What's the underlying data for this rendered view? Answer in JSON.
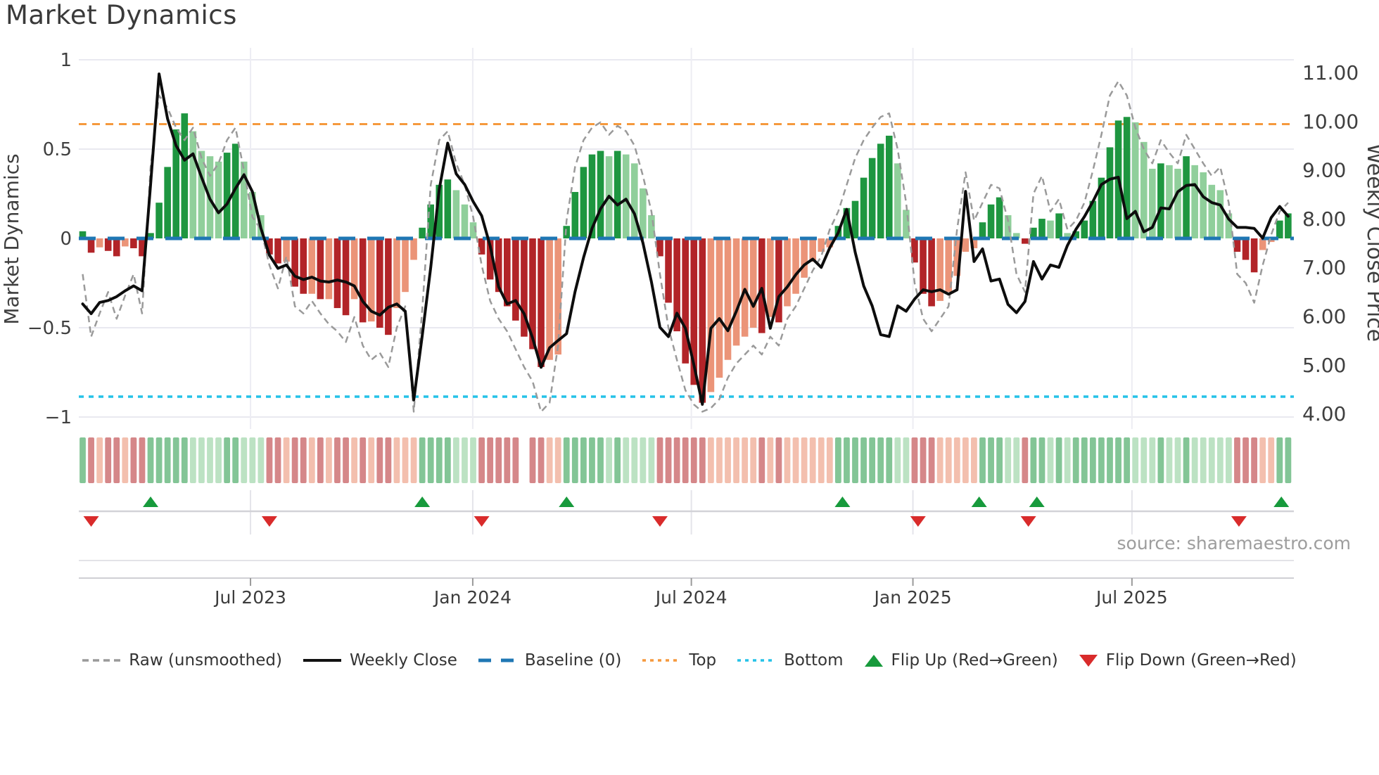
{
  "title": "Market Dynamics",
  "source": {
    "text": "source: sharemaestro.com"
  },
  "axes": {
    "left": {
      "title": "Market Dynamics",
      "tick_labels": [
        "1",
        "0.5",
        "0",
        "−0.5",
        "−1"
      ],
      "tick_values": [
        1,
        0.5,
        0,
        -0.5,
        -1
      ],
      "range": [
        -1.07,
        1.07
      ]
    },
    "right": {
      "title": "Weekly Close Price",
      "tick_labels": [
        "11.00",
        "10.00",
        "9.00",
        "8.00",
        "7.00",
        "6.00",
        "5.00",
        "4.00"
      ],
      "tick_values": [
        11,
        10,
        9,
        8,
        7,
        6,
        5,
        4
      ]
    },
    "x": {
      "tick_labels": [
        "Jul 2023",
        "Jan 2024",
        "Jul 2024",
        "Jan 2025",
        "Jul 2025"
      ],
      "tick_weeks": [
        19.77,
        45.95,
        71.7,
        97.8,
        123.6
      ]
    }
  },
  "legend": {
    "items": [
      {
        "label": "Raw (unsmoothed)",
        "swatch": "dashed-line",
        "color": "#9a9a9a"
      },
      {
        "label": "Weekly Close",
        "swatch": "solid-line",
        "color": "#111111"
      },
      {
        "label": "Baseline (0)",
        "swatch": "long-dash-line",
        "color": "#1f77b4"
      },
      {
        "label": "Top",
        "swatch": "dotted-line",
        "color": "#f5993d"
      },
      {
        "label": "Bottom",
        "swatch": "dotted-line",
        "color": "#25c2e8"
      },
      {
        "label": "Flip Up (Red→Green)",
        "swatch": "triangle-up",
        "color": "#179a3c"
      },
      {
        "label": "Flip Down (Green→Red)",
        "swatch": "triangle-down",
        "color": "#d92b2b"
      }
    ]
  },
  "colors": {
    "bar_strong_green": "#1e9640",
    "bar_soft_green": "#90cf9b",
    "bar_strong_red": "#b22428",
    "bar_soft_red": "#eb9478",
    "baseline": "#1f77b4",
    "top_line": "#f5993d",
    "bottom_line": "#25c2e8",
    "close_line": "#0d0d0d",
    "raw_line": "#9a9a9a",
    "grid": "#e9e9f0",
    "axis_text": "#3f3f3f",
    "flip_up": "#179a3c",
    "flip_down": "#d92b2b"
  },
  "chart_data": {
    "type": "bar",
    "subtype": "weekly oscillator bars + dual-axis lines",
    "weeks": 143,
    "title": "Market Dynamics",
    "ylabel_left": "Market Dynamics",
    "ylabel_right": "Weekly Close Price",
    "ylim_left": [
      -1.07,
      1.07
    ],
    "reference_lines": {
      "baseline": 0,
      "top": 0.64,
      "bottom": -0.886
    },
    "oscillator": {
      "axis": "left",
      "shade_legend": "D = strong color (magnitude rising), L = soft color (magnitude falling); green positive, red negative",
      "values": [
        0.04,
        -0.08,
        -0.05,
        -0.07,
        -0.1,
        -0.045,
        -0.055,
        -0.1,
        0.03,
        0.2,
        0.4,
        0.61,
        0.7,
        0.6,
        0.49,
        0.46,
        0.43,
        0.48,
        0.53,
        0.43,
        0.26,
        0.13,
        -0.09,
        -0.14,
        -0.13,
        -0.27,
        -0.31,
        -0.31,
        -0.34,
        -0.34,
        -0.39,
        -0.43,
        -0.34,
        -0.47,
        -0.465,
        -0.5,
        -0.54,
        -0.39,
        -0.3,
        -0.12,
        0.06,
        0.19,
        0.3,
        0.33,
        0.27,
        0.19,
        0.09,
        -0.09,
        -0.23,
        -0.3,
        -0.38,
        -0.46,
        -0.55,
        -0.62,
        -0.72,
        -0.68,
        -0.65,
        0.07,
        0.26,
        0.4,
        0.47,
        0.49,
        0.46,
        0.49,
        0.47,
        0.42,
        0.28,
        0.13,
        -0.1,
        -0.36,
        -0.52,
        -0.7,
        -0.82,
        -0.92,
        -0.86,
        -0.78,
        -0.68,
        -0.6,
        -0.55,
        -0.5,
        -0.53,
        -0.44,
        -0.47,
        -0.38,
        -0.31,
        -0.22,
        -0.13,
        -0.075,
        -0.05,
        0.07,
        0.17,
        0.21,
        0.34,
        0.45,
        0.53,
        0.575,
        0.42,
        0.16,
        -0.135,
        -0.31,
        -0.38,
        -0.35,
        -0.3,
        -0.21,
        -0.075,
        -0.055,
        0.09,
        0.19,
        0.23,
        0.13,
        0.03,
        -0.03,
        0.06,
        0.11,
        0.1,
        0.14,
        0.03,
        0.04,
        0.1,
        0.21,
        0.34,
        0.51,
        0.66,
        0.68,
        0.65,
        0.54,
        0.39,
        0.42,
        0.41,
        0.39,
        0.46,
        0.41,
        0.37,
        0.3,
        0.27,
        0.14,
        -0.075,
        -0.12,
        -0.19,
        -0.065,
        -0.02,
        0.1,
        0.14
      ],
      "shade": "DDLDDLDDDDDDDLLLLDDLLLDDLDDLDLDDLDLDDLLLDDDDLLLDDDDDDDDLLDDDDDLDLLLLDDDDDDLLLLLLDLDLLLLLLDDDDDDDLLDDDLLLLLDDDLLDDDLDLDDDDDDDLLLDLLDLLLLLDDDLLDD"
    },
    "weekly_close": {
      "axis": "right",
      "values": [
        6.25,
        6.05,
        6.28,
        6.32,
        6.4,
        6.52,
        6.62,
        6.52,
        8.7,
        10.97,
        10.05,
        9.5,
        9.2,
        9.33,
        8.85,
        8.4,
        8.12,
        8.3,
        8.62,
        8.9,
        8.55,
        7.8,
        7.25,
        6.98,
        7.05,
        6.82,
        6.75,
        6.8,
        6.72,
        6.7,
        6.74,
        6.7,
        6.62,
        6.3,
        6.1,
        6.02,
        6.18,
        6.25,
        6.1,
        4.28,
        5.6,
        7.0,
        8.6,
        9.55,
        8.92,
        8.7,
        8.35,
        8.06,
        7.44,
        6.6,
        6.25,
        6.32,
        6.05,
        5.55,
        4.95,
        5.35,
        5.5,
        5.64,
        6.5,
        7.2,
        7.8,
        8.2,
        8.46,
        8.28,
        8.4,
        8.1,
        7.5,
        6.7,
        5.77,
        5.58,
        6.06,
        5.75,
        5.0,
        4.19,
        5.75,
        5.95,
        5.7,
        6.1,
        6.55,
        6.2,
        6.57,
        5.75,
        6.4,
        6.6,
        6.85,
        7.05,
        7.17,
        7.0,
        7.4,
        7.71,
        8.19,
        7.31,
        6.62,
        6.21,
        5.62,
        5.58,
        6.21,
        6.1,
        6.35,
        6.54,
        6.5,
        6.54,
        6.45,
        6.54,
        8.56,
        7.12,
        7.38,
        6.72,
        6.76,
        6.24,
        6.07,
        6.3,
        7.12,
        6.76,
        7.05,
        7.0,
        7.45,
        7.78,
        8.04,
        8.35,
        8.7,
        8.81,
        8.85,
        8.0,
        8.15,
        7.73,
        7.82,
        8.22,
        8.2,
        8.55,
        8.68,
        8.7,
        8.45,
        8.33,
        8.28,
        7.99,
        7.82,
        7.82,
        7.8,
        7.6,
        8.02,
        8.25,
        8.05
      ]
    },
    "raw_unsmoothed": {
      "axis": "left",
      "values": [
        -0.2,
        -0.55,
        -0.42,
        -0.3,
        -0.45,
        -0.32,
        -0.2,
        -0.42,
        0.4,
        0.8,
        0.73,
        0.62,
        0.55,
        0.62,
        0.45,
        0.35,
        0.42,
        0.55,
        0.62,
        0.38,
        0.12,
        0.05,
        -0.15,
        -0.28,
        -0.1,
        -0.38,
        -0.42,
        -0.35,
        -0.42,
        -0.48,
        -0.52,
        -0.58,
        -0.44,
        -0.6,
        -0.68,
        -0.64,
        -0.72,
        -0.5,
        -0.38,
        -0.97,
        -0.4,
        0.3,
        0.55,
        0.6,
        0.42,
        0.3,
        0.12,
        -0.15,
        -0.35,
        -0.45,
        -0.52,
        -0.62,
        -0.72,
        -0.8,
        -0.97,
        -0.92,
        -0.6,
        0.1,
        0.4,
        0.55,
        0.62,
        0.65,
        0.58,
        0.63,
        0.6,
        0.52,
        0.35,
        0.15,
        -0.2,
        -0.5,
        -0.68,
        -0.85,
        -0.93,
        -0.97,
        -0.95,
        -0.9,
        -0.78,
        -0.7,
        -0.65,
        -0.6,
        -0.65,
        -0.55,
        -0.6,
        -0.45,
        -0.38,
        -0.28,
        -0.18,
        -0.1,
        0.05,
        0.15,
        0.3,
        0.45,
        0.55,
        0.62,
        0.68,
        0.7,
        0.5,
        0.2,
        -0.25,
        -0.45,
        -0.52,
        -0.45,
        -0.38,
        0.05,
        0.37,
        0.1,
        0.2,
        0.3,
        0.28,
        0.1,
        -0.2,
        -0.3,
        0.25,
        0.35,
        0.15,
        0.22,
        0.05,
        0.1,
        0.2,
        0.38,
        0.58,
        0.8,
        0.88,
        0.8,
        0.62,
        0.5,
        0.42,
        0.55,
        0.48,
        0.42,
        0.58,
        0.5,
        0.42,
        0.35,
        0.4,
        0.2,
        -0.2,
        -0.25,
        -0.36,
        -0.15,
        0.02,
        0.15,
        0.2
      ]
    },
    "flip_up_weeks": [
      8,
      40,
      57,
      89.5,
      105.6,
      112.4,
      141.2
    ],
    "flip_down_weeks": [
      1,
      22,
      47,
      68,
      98.4,
      111.4,
      136.2
    ],
    "heatmap_strip": {
      "encoding": "mirrors oscillator sign and shade at ~50% opacity",
      "gap_index": 52
    }
  }
}
